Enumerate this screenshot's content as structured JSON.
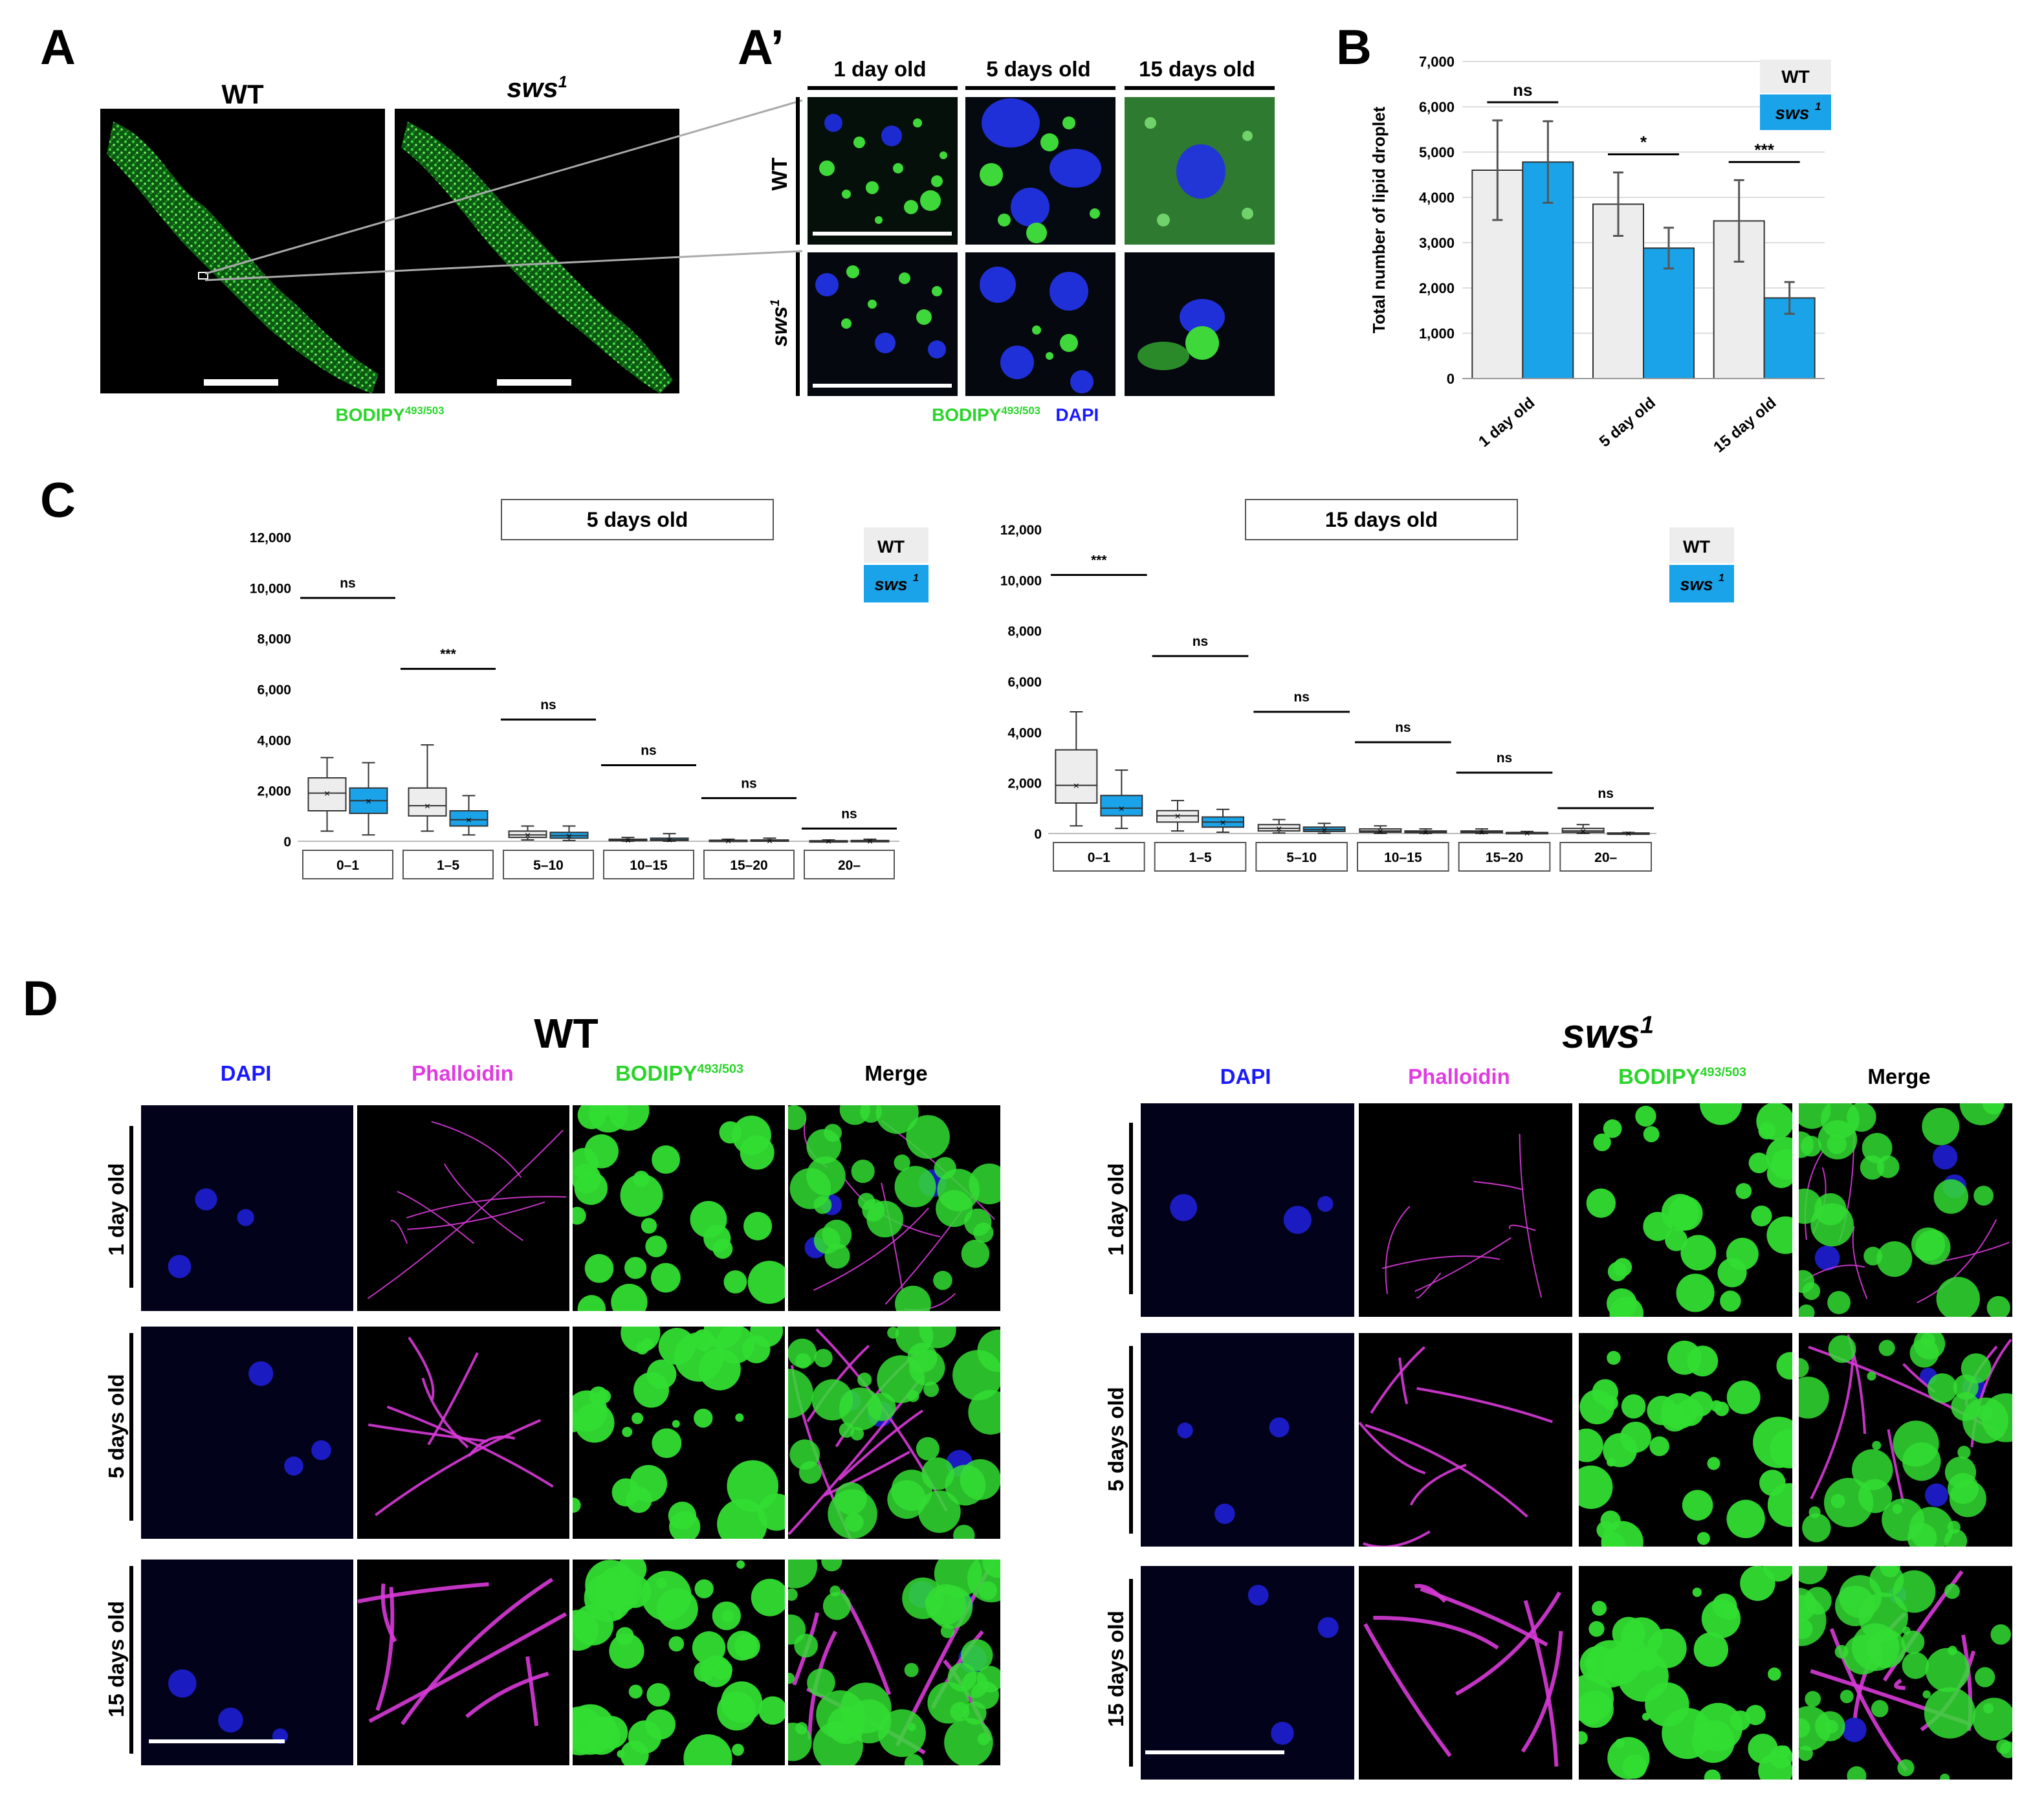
{
  "panel_labels": {
    "A": "A",
    "Aprime": "A’",
    "B": "B",
    "C": "C",
    "D": "D"
  },
  "panelA": {
    "wt": "WT",
    "sws": "sws",
    "sws_sup": "1",
    "stain": "BODIPY",
    "stain_sup": "493/503"
  },
  "panelAprime": {
    "cols": [
      "1 day old",
      "5 days old",
      "15 days old"
    ],
    "row_wt": "WT",
    "row_sws": "sws",
    "row_sws_sup": "1",
    "stain1": "BODIPY",
    "stain1_sup": "493/503",
    "stain2": "DAPI"
  },
  "legend": {
    "wt": "WT",
    "sws": "sws",
    "sws_sup": "1"
  },
  "colors": {
    "wt_fill": "#ededed",
    "sws_fill": "#1aa3e8",
    "green": "#2bd42b",
    "blue": "#1a1aff",
    "magenta": "#e03ce0"
  },
  "chart_data": [
    {
      "id": "B",
      "type": "bar",
      "ylabel": "Total number of lipid droplet",
      "ylim": [
        0,
        7000
      ],
      "yticks": [
        "0",
        "1,000",
        "2,000",
        "3,000",
        "4,000",
        "5,000",
        "6,000",
        "7,000"
      ],
      "categories": [
        "1 day old",
        "5 day old",
        "15 day old"
      ],
      "series": [
        {
          "name": "WT",
          "values": [
            4600,
            3850,
            3480
          ],
          "err": [
            1100,
            700,
            900
          ]
        },
        {
          "name": "sws1",
          "values": [
            4780,
            2880,
            1780
          ],
          "err": [
            900,
            450,
            350
          ]
        }
      ],
      "annotations": [
        "ns",
        "*",
        "***"
      ]
    },
    {
      "id": "C-left",
      "type": "box",
      "title": "5 days old",
      "ylim": [
        0,
        12000
      ],
      "yticks": [
        "0",
        "2,000",
        "4,000",
        "6,000",
        "8,000",
        "10,000",
        "12,000"
      ],
      "categories": [
        "0–1",
        "1–5",
        "5–10",
        "10–15",
        "15–20",
        "20–"
      ],
      "series": [
        {
          "name": "WT",
          "boxes": [
            [
              400,
              1200,
              1900,
              2500,
              3300
            ],
            [
              400,
              1000,
              1400,
              2100,
              3800
            ],
            [
              50,
              150,
              250,
              400,
              600
            ],
            [
              0,
              20,
              50,
              80,
              150
            ],
            [
              0,
              10,
              20,
              40,
              80
            ],
            [
              0,
              5,
              10,
              20,
              50
            ]
          ]
        },
        {
          "name": "sws1",
          "boxes": [
            [
              250,
              1100,
              1600,
              2100,
              3100
            ],
            [
              250,
              600,
              850,
              1200,
              1800
            ],
            [
              30,
              120,
              220,
              350,
              600
            ],
            [
              0,
              30,
              60,
              120,
              300
            ],
            [
              0,
              10,
              20,
              50,
              120
            ],
            [
              0,
              5,
              10,
              30,
              80
            ]
          ]
        }
      ],
      "annotations": [
        "ns",
        "***",
        "ns",
        "ns",
        "ns",
        "ns"
      ]
    },
    {
      "id": "C-right",
      "type": "box",
      "title": "15 days old",
      "ylim": [
        0,
        12000
      ],
      "yticks": [
        "0",
        "2,000",
        "4,000",
        "6,000",
        "8,000",
        "10,000",
        "12,000"
      ],
      "categories": [
        "0–1",
        "1–5",
        "5–10",
        "10–15",
        "15–20",
        "20–"
      ],
      "series": [
        {
          "name": "WT",
          "boxes": [
            [
              300,
              1200,
              1900,
              3300,
              4800
            ],
            [
              100,
              450,
              700,
              900,
              1300
            ],
            [
              20,
              100,
              200,
              350,
              550
            ],
            [
              0,
              50,
              100,
              180,
              300
            ],
            [
              0,
              30,
              60,
              100,
              180
            ],
            [
              0,
              40,
              100,
              200,
              350
            ]
          ]
        },
        {
          "name": "sws1",
          "boxes": [
            [
              200,
              700,
              1000,
              1500,
              2500
            ],
            [
              50,
              250,
              450,
              650,
              950
            ],
            [
              10,
              80,
              150,
              250,
              400
            ],
            [
              0,
              30,
              60,
              100,
              180
            ],
            [
              0,
              10,
              20,
              40,
              80
            ],
            [
              0,
              5,
              10,
              20,
              40
            ]
          ]
        }
      ],
      "annotations": [
        "***",
        "ns",
        "ns",
        "ns",
        "ns",
        "ns"
      ]
    }
  ],
  "panelD": {
    "wt_title": "WT",
    "sws_title": "sws",
    "sws_sup": "1",
    "cols": [
      "DAPI",
      "Phalloidin",
      "BODIPY",
      "Merge"
    ],
    "bodipy_sup": "493/503",
    "rows": [
      "1 day old",
      "5 days old",
      "15 days old"
    ]
  }
}
